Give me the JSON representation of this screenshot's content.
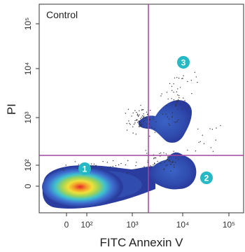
{
  "chart_data": {
    "type": "scatter",
    "subtype": "flow-cytometry-density",
    "label": "Control",
    "xlabel": "FITC Annexin V",
    "ylabel": "PI",
    "x_scale": "biexponential",
    "y_scale": "biexponential",
    "x_ticks": [
      {
        "label": "0",
        "value": 0
      },
      {
        "label": "10²",
        "value": 100
      },
      {
        "label": "10³",
        "value": 1000
      },
      {
        "label": "10⁴",
        "value": 10000
      },
      {
        "label": "10⁵",
        "value": 100000
      }
    ],
    "y_ticks": [
      {
        "label": "0",
        "value": 0
      },
      {
        "label": "10²",
        "value": 100
      },
      {
        "label": "10³",
        "value": 1000
      },
      {
        "label": "10⁴",
        "value": 10000
      },
      {
        "label": "10⁵",
        "value": 100000
      }
    ],
    "gates": {
      "x": 2000,
      "y": 150
    },
    "populations": [
      {
        "marker": "1",
        "center": [
          80,
          10
        ],
        "density": "high"
      },
      {
        "marker": "2",
        "center": [
          10000,
          40
        ],
        "density": "medium"
      },
      {
        "marker": "3",
        "center": [
          10000,
          1500
        ],
        "density": "medium"
      }
    ],
    "colors": {
      "gate": "#a0479e",
      "marker": "#26b8c4",
      "density_scale": [
        "#2a3c9e",
        "#3e6fd0",
        "#3fc1cf",
        "#9ad35a",
        "#f0e03a",
        "#f39a2a",
        "#e3262a"
      ]
    },
    "grid": false,
    "legend": "none"
  }
}
